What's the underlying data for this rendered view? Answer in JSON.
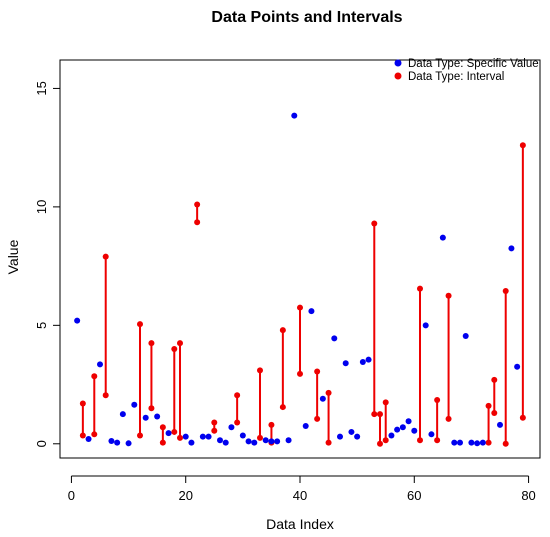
{
  "chart_data": {
    "type": "scatter",
    "title": "Data Points and Intervals",
    "xlabel": "Data Index",
    "ylabel": "Value",
    "xlim": [
      -2,
      82
    ],
    "ylim": [
      -0.6,
      16.2
    ],
    "xticks": [
      0,
      20,
      40,
      60,
      80
    ],
    "yticks": [
      0,
      5,
      10,
      15
    ],
    "legend_position": "top-right",
    "legend": [
      {
        "label": "Data Type: Specific Value",
        "color": "#0000ee"
      },
      {
        "label": "Data Type: Interval",
        "color": "#ee0000"
      }
    ],
    "point_series": {
      "name": "Data Type: Specific Value",
      "color": "#0000ee",
      "points": [
        [
          1,
          5.2
        ],
        [
          3,
          0.2
        ],
        [
          5,
          3.35
        ],
        [
          7,
          0.12
        ],
        [
          8,
          0.05
        ],
        [
          9,
          1.25
        ],
        [
          10,
          0.02
        ],
        [
          11,
          1.65
        ],
        [
          13,
          1.1
        ],
        [
          15,
          1.15
        ],
        [
          17,
          0.45
        ],
        [
          20,
          0.3
        ],
        [
          21,
          0.05
        ],
        [
          23,
          0.3
        ],
        [
          24,
          0.3
        ],
        [
          26,
          0.15
        ],
        [
          27,
          0.05
        ],
        [
          28,
          0.7
        ],
        [
          30,
          0.35
        ],
        [
          31,
          0.1
        ],
        [
          32,
          0.05
        ],
        [
          34,
          0.15
        ],
        [
          35,
          0.1
        ],
        [
          36,
          0.1
        ],
        [
          38,
          0.15
        ],
        [
          39,
          13.85
        ],
        [
          41,
          0.75
        ],
        [
          42,
          5.6
        ],
        [
          44,
          1.9
        ],
        [
          46,
          4.45
        ],
        [
          47,
          0.3
        ],
        [
          48,
          3.4
        ],
        [
          49,
          0.5
        ],
        [
          50,
          0.3
        ],
        [
          51,
          3.45
        ],
        [
          52,
          3.55
        ],
        [
          56,
          0.35
        ],
        [
          57,
          0.6
        ],
        [
          58,
          0.7
        ],
        [
          59,
          0.95
        ],
        [
          60,
          0.55
        ],
        [
          62,
          5.0
        ],
        [
          63,
          0.4
        ],
        [
          65,
          8.7
        ],
        [
          67,
          0.05
        ],
        [
          68,
          0.05
        ],
        [
          69,
          4.55
        ],
        [
          70,
          0.05
        ],
        [
          71,
          0.02
        ],
        [
          72,
          0.05
        ],
        [
          75,
          0.8
        ],
        [
          77,
          8.25
        ],
        [
          78,
          3.25
        ]
      ]
    },
    "interval_series": {
      "name": "Data Type: Interval",
      "color": "#ee0000",
      "intervals": [
        [
          2,
          0.35,
          1.7
        ],
        [
          4,
          0.4,
          2.85
        ],
        [
          6,
          2.05,
          7.9
        ],
        [
          12,
          0.35,
          5.05
        ],
        [
          14,
          1.5,
          4.25
        ],
        [
          16,
          0.05,
          0.7
        ],
        [
          18,
          0.5,
          4.0
        ],
        [
          19,
          0.25,
          4.25
        ],
        [
          22,
          9.35,
          10.1
        ],
        [
          25,
          0.55,
          0.9
        ],
        [
          29,
          0.9,
          2.05
        ],
        [
          33,
          0.25,
          3.1
        ],
        [
          35,
          0.05,
          0.8
        ],
        [
          37,
          1.55,
          4.8
        ],
        [
          40,
          2.95,
          5.75
        ],
        [
          43,
          1.05,
          3.05
        ],
        [
          45,
          0.05,
          2.15
        ],
        [
          53,
          1.25,
          9.3
        ],
        [
          54,
          0.0,
          1.25
        ],
        [
          55,
          0.15,
          1.75
        ],
        [
          61,
          0.15,
          6.55
        ],
        [
          64,
          0.15,
          1.85
        ],
        [
          66,
          1.05,
          6.25
        ],
        [
          73,
          0.05,
          1.6
        ],
        [
          74,
          1.3,
          2.7
        ],
        [
          76,
          0.0,
          6.45
        ],
        [
          79,
          1.1,
          12.6
        ]
      ]
    }
  }
}
